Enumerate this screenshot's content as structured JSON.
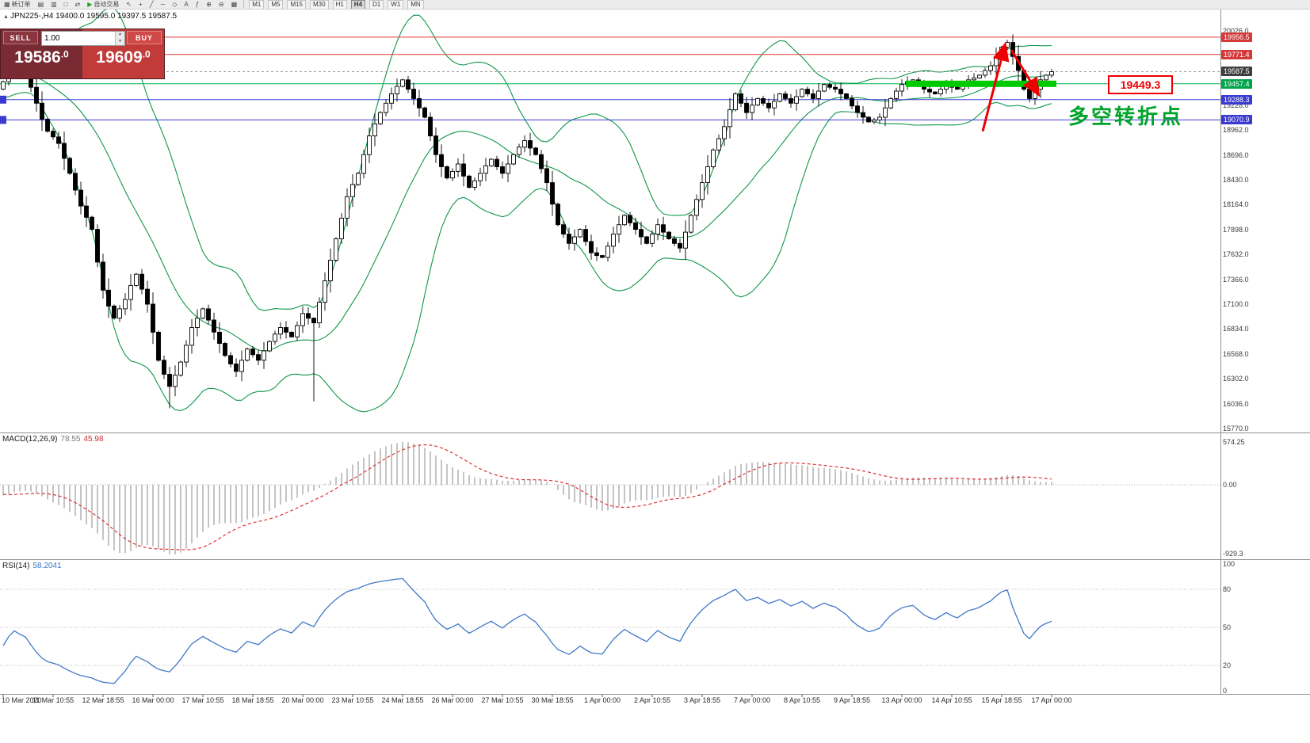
{
  "toolbar": {
    "items": [
      {
        "name": "new-order-button",
        "glyph": "▦",
        "label": "新订单"
      },
      {
        "name": "chart-window-icon",
        "glyph": "▤",
        "label": ""
      },
      {
        "name": "profiles-icon",
        "glyph": "▥",
        "label": ""
      },
      {
        "name": "terminal-icon",
        "glyph": "□",
        "label": ""
      },
      {
        "name": "strategy-tester-icon",
        "glyph": "⇄",
        "label": ""
      },
      {
        "name": "auto-trading-button",
        "glyph": "▶",
        "label": "自动交易",
        "glyph_color": "#1f9e1f"
      },
      {
        "name": "cursor-icon",
        "glyph": "↖",
        "label": ""
      },
      {
        "name": "crosshair-icon",
        "glyph": "+",
        "label": ""
      },
      {
        "name": "trendline-icon",
        "glyph": "╱",
        "label": ""
      },
      {
        "name": "horizontal-line-icon",
        "glyph": "─",
        "label": ""
      },
      {
        "name": "shapes-icon",
        "glyph": "◇",
        "label": ""
      },
      {
        "name": "text-label-icon",
        "glyph": "A",
        "label": ""
      },
      {
        "name": "indicators-icon",
        "glyph": "ƒ",
        "label": ""
      },
      {
        "name": "zoom-in-icon",
        "glyph": "⊕",
        "label": ""
      },
      {
        "name": "zoom-out-icon",
        "glyph": "⊖",
        "label": ""
      },
      {
        "name": "tile-windows-icon",
        "glyph": "▦",
        "label": ""
      }
    ],
    "timeframes": [
      "M1",
      "M5",
      "M15",
      "M30",
      "H1",
      "H4",
      "D1",
      "W1",
      "MN"
    ],
    "active_timeframe": "H4"
  },
  "chart": {
    "marker_glyph": "▲",
    "symbol_line": "JPN225-,H4 19400.0 19595.0 19397.5 19587.5",
    "trade_panel": {
      "sell_label": "SELL",
      "buy_label": "BUY",
      "volume": "1.00",
      "spinner_up": "▲",
      "spinner_down": "▼",
      "sell_price_big": "19586",
      "sell_price_small": ".0",
      "buy_price_big": "19609",
      "buy_price_small": ".0"
    }
  },
  "macd": {
    "title": "MACD(12,26,9)",
    "value_main": "78.55",
    "value_signal": "45.98",
    "axis_labels": [
      "574.25",
      "0.00",
      "-929.3"
    ]
  },
  "rsi": {
    "title": "RSI(14)",
    "value": "58.2041",
    "axis_values": [
      100,
      80,
      50,
      20,
      0
    ]
  },
  "annotations": {
    "box_label": "19449.3",
    "cn_text": "多空转折点"
  },
  "colors": {
    "bollinger": "#0f9648",
    "candle_up": "#ffffff",
    "candle_down": "#000000",
    "candle_outline": "#000000",
    "macd_hist": "#c4c4c4",
    "macd_signal": "#e03030",
    "rsi_line": "#4079c8",
    "rsi_level": "#b9b9b9",
    "annotation_green": "#00ca00",
    "annotation_red": "#ef0000",
    "grid_text": "#3c3c3c"
  },
  "chart_data": {
    "type": "candlestick",
    "symbol": "JPN225-",
    "timeframe": "H4",
    "ohlc_current": {
      "open": 19400.0,
      "high": 19595.0,
      "low": 19397.5,
      "close": 19587.5
    },
    "open_first": 19400.0,
    "pre_closes": [
      19850,
      19900,
      19820,
      19750,
      19700,
      19650,
      19600,
      19680,
      19720,
      19650,
      19550,
      19500,
      19450,
      19520,
      19580,
      19500,
      19420,
      19380,
      19420
    ],
    "closes": [
      19480,
      19580,
      19650,
      19600,
      19560,
      19420,
      19250,
      19080,
      18950,
      18890,
      18820,
      18660,
      18500,
      18320,
      18150,
      18030,
      17900,
      17550,
      17250,
      17080,
      16950,
      17050,
      17150,
      17300,
      17420,
      17260,
      17100,
      16800,
      16500,
      16350,
      16220,
      16340,
      16480,
      16660,
      16850,
      16950,
      17050,
      16930,
      16800,
      16680,
      16550,
      16460,
      16380,
      16500,
      16620,
      16560,
      16500,
      16600,
      16700,
      16780,
      16850,
      16800,
      16750,
      16870,
      17000,
      16950,
      16900,
      17120,
      17350,
      17570,
      17800,
      18020,
      18250,
      18380,
      18500,
      18700,
      18900,
      19030,
      19150,
      19250,
      19350,
      19430,
      19500,
      19400,
      19300,
      19200,
      19100,
      18900,
      18700,
      18570,
      18450,
      18520,
      18600,
      18470,
      18350,
      18420,
      18500,
      18580,
      18650,
      18570,
      18500,
      18600,
      18700,
      18780,
      18850,
      18770,
      18700,
      18550,
      18400,
      18170,
      17950,
      17850,
      17750,
      17820,
      17900,
      17770,
      17650,
      17620,
      17600,
      17720,
      17850,
      17950,
      18050,
      17970,
      17900,
      17820,
      17750,
      17850,
      17950,
      17870,
      17800,
      17750,
      17700,
      17870,
      18050,
      18220,
      18400,
      18570,
      18750,
      18870,
      19000,
      19180,
      19350,
      19250,
      19150,
      19230,
      19300,
      19250,
      19200,
      19270,
      19350,
      19300,
      19250,
      19320,
      19400,
      19350,
      19300,
      19380,
      19450,
      19420,
      19400,
      19350,
      19300,
      19220,
      19150,
      19100,
      19050,
      19070,
      19100,
      19200,
      19300,
      19380,
      19450,
      19480,
      19500,
      19450,
      19400,
      19370,
      19350,
      19400,
      19450,
      19420,
      19400,
      19450,
      19500,
      19520,
      19550,
      19600,
      19650,
      19750,
      19850,
      19900,
      19750,
      19600,
      19400,
      19300,
      19400,
      19500,
      19550,
      19587.5
    ],
    "low_overrides": {
      "30": 15985,
      "56": 16060
    },
    "indicators": {
      "bollinger": {
        "period": 20,
        "deviation": 2
      },
      "macd": {
        "fast": 12,
        "slow": 26,
        "signal": 9,
        "current_main": 78.55,
        "current_signal": 45.98,
        "axis_max": 574.25,
        "axis_min": -929.3
      },
      "rsi": {
        "period": 14,
        "current": 58.2041,
        "levels": [
          80,
          50,
          20
        ]
      }
    },
    "h_lines": [
      {
        "price": 19956.5,
        "color": "#e23535",
        "badge": "#d43a3a",
        "style": "solid"
      },
      {
        "price": 19771.4,
        "color": "#e23535",
        "badge": "#d43a3a",
        "style": "solid"
      },
      {
        "price": 19587.5,
        "color": "#9a9a9a",
        "badge": "#3f3f3f",
        "style": "dashed"
      },
      {
        "price": 19457.4,
        "color": "#00b050",
        "badge": "#00a44c",
        "style": "solid"
      },
      {
        "price": 19288.3,
        "color": "#3b3bd8",
        "badge": "#3a3ad0",
        "style": "solid",
        "left_tag": true
      },
      {
        "price": 19070.9,
        "color": "#3b3bd8",
        "badge": "#3a3ad0",
        "style": "solid",
        "left_tag": true
      }
    ],
    "grid_label_prices": [
      20026.0,
      19228.0,
      18962.0,
      18696.0,
      18430.0,
      18164.0,
      17898.0,
      17632.0,
      17366.0,
      17100.0,
      16834.0,
      16568.0,
      16302.0,
      16036.0,
      15770.0
    ],
    "time_labels": [
      "10 Mar 2020",
      "11 Mar 10:55",
      "12 Mar 18:55",
      "16 Mar 00:00",
      "17 Mar 10:55",
      "18 Mar 18:55",
      "20 Mar 00:00",
      "23 Mar 10:55",
      "24 Mar 18:55",
      "26 Mar 00:00",
      "27 Mar 10:55",
      "30 Mar 18:55",
      "1 Apr 00:00",
      "2 Apr 10:55",
      "3 Apr 18:55",
      "7 Apr 00:00",
      "8 Apr 10:55",
      "9 Apr 18:55",
      "13 Apr 00:00",
      "14 Apr 10:55",
      "15 Apr 18:55",
      "17 Apr 00:00"
    ]
  }
}
